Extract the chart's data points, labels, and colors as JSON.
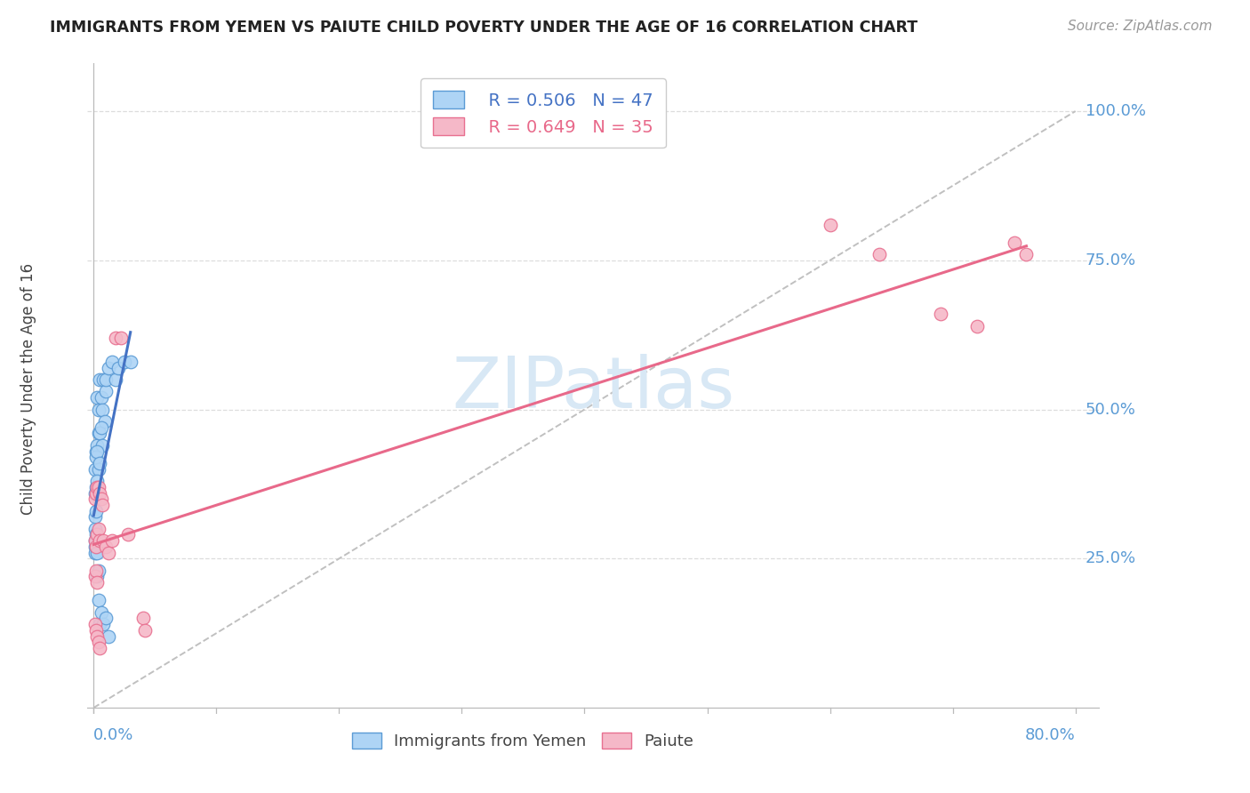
{
  "title": "IMMIGRANTS FROM YEMEN VS PAIUTE CHILD POVERTY UNDER THE AGE OF 16 CORRELATION CHART",
  "source": "Source: ZipAtlas.com",
  "ylabel": "Child Poverty Under the Age of 16",
  "legend_blue_label": "Immigrants from Yemen",
  "legend_pink_label": "Paiute",
  "legend_R_blue": "R = 0.506",
  "legend_N_blue": "N = 47",
  "legend_R_pink": "R = 0.649",
  "legend_N_pink": "N = 35",
  "blue_fill": "#AED4F5",
  "blue_edge": "#5B9BD5",
  "pink_fill": "#F5B8C8",
  "pink_edge": "#E87090",
  "blue_line": "#4472C4",
  "pink_line": "#E8698A",
  "diag_color": "#C0C0C0",
  "grid_color": "#DDDDDD",
  "tick_color": "#5B9BD5",
  "watermark_color": "#D8E8F5",
  "blue_x": [
    0.003,
    0.004,
    0.005,
    0.006,
    0.007,
    0.008,
    0.009,
    0.01,
    0.002,
    0.003,
    0.004,
    0.005,
    0.006,
    0.007,
    0.001,
    0.002,
    0.003,
    0.004,
    0.005,
    0.001,
    0.002,
    0.003,
    0.001,
    0.001,
    0.002,
    0.01,
    0.012,
    0.015,
    0.018,
    0.02,
    0.025,
    0.03,
    0.001,
    0.001,
    0.001,
    0.002,
    0.002,
    0.002,
    0.003,
    0.003,
    0.004,
    0.004,
    0.005,
    0.006,
    0.008,
    0.01,
    0.012
  ],
  "blue_y": [
    0.52,
    0.5,
    0.55,
    0.52,
    0.5,
    0.55,
    0.48,
    0.53,
    0.43,
    0.44,
    0.46,
    0.46,
    0.47,
    0.44,
    0.4,
    0.42,
    0.43,
    0.4,
    0.41,
    0.36,
    0.37,
    0.38,
    0.3,
    0.32,
    0.33,
    0.55,
    0.57,
    0.58,
    0.55,
    0.57,
    0.58,
    0.58,
    0.28,
    0.27,
    0.26,
    0.28,
    0.29,
    0.27,
    0.26,
    0.22,
    0.23,
    0.18,
    0.14,
    0.16,
    0.14,
    0.15,
    0.12
  ],
  "pink_x": [
    0.001,
    0.002,
    0.003,
    0.004,
    0.005,
    0.006,
    0.007,
    0.001,
    0.002,
    0.003,
    0.004,
    0.005,
    0.001,
    0.002,
    0.003,
    0.008,
    0.01,
    0.012,
    0.015,
    0.018,
    0.022,
    0.028,
    0.04,
    0.042,
    0.6,
    0.64,
    0.69,
    0.72,
    0.75,
    0.76,
    0.001,
    0.002,
    0.003,
    0.004,
    0.005
  ],
  "pink_y": [
    0.35,
    0.36,
    0.37,
    0.37,
    0.36,
    0.35,
    0.34,
    0.28,
    0.27,
    0.29,
    0.3,
    0.28,
    0.22,
    0.23,
    0.21,
    0.28,
    0.27,
    0.26,
    0.28,
    0.62,
    0.62,
    0.29,
    0.15,
    0.13,
    0.81,
    0.76,
    0.66,
    0.64,
    0.78,
    0.76,
    0.14,
    0.13,
    0.12,
    0.11,
    0.1
  ],
  "xlim": [
    -0.005,
    0.82
  ],
  "ylim": [
    -0.01,
    1.08
  ],
  "xdata_max": 0.8,
  "ydata_max": 1.0
}
